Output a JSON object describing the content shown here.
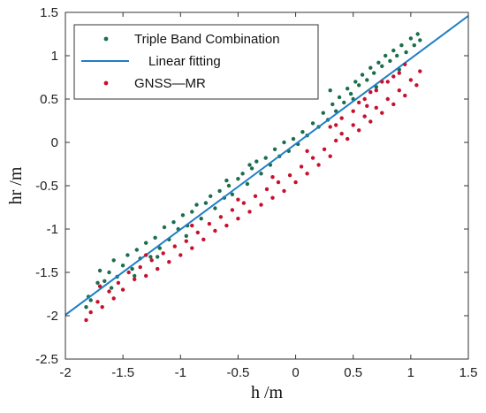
{
  "chart_data": {
    "type": "scatter",
    "xlabel": "h /m",
    "ylabel": "hr /m",
    "xlim": [
      -2,
      1.5
    ],
    "ylim": [
      -2.5,
      1.5
    ],
    "xticks": [
      "-2",
      "-1.5",
      "-1",
      "-0.5",
      "0",
      "0.5",
      "1",
      "1.5"
    ],
    "yticks": [
      "-2.5",
      "-2",
      "-1.5",
      "-1",
      "-0.5",
      "0",
      "0.5",
      "1",
      "1.5"
    ],
    "grid": false,
    "legend_position": "top-left",
    "series": [
      {
        "name": "Triple Band Combination",
        "kind": "scatter",
        "color": "#1a6e4a",
        "points": [
          [
            -1.82,
            -1.9
          ],
          [
            -1.8,
            -1.78
          ],
          [
            -1.78,
            -1.82
          ],
          [
            -1.72,
            -1.62
          ],
          [
            -1.7,
            -1.48
          ],
          [
            -1.66,
            -1.6
          ],
          [
            -1.62,
            -1.5
          ],
          [
            -1.58,
            -1.36
          ],
          [
            -1.55,
            -1.55
          ],
          [
            -1.5,
            -1.42
          ],
          [
            -1.46,
            -1.3
          ],
          [
            -1.42,
            -1.46
          ],
          [
            -1.38,
            -1.24
          ],
          [
            -1.35,
            -1.34
          ],
          [
            -1.3,
            -1.16
          ],
          [
            -1.26,
            -1.32
          ],
          [
            -1.22,
            -1.1
          ],
          [
            -1.18,
            -1.22
          ],
          [
            -1.14,
            -0.98
          ],
          [
            -1.1,
            -1.12
          ],
          [
            -1.06,
            -0.92
          ],
          [
            -1.02,
            -1.0
          ],
          [
            -0.98,
            -0.84
          ],
          [
            -0.94,
            -0.96
          ],
          [
            -0.9,
            -0.8
          ],
          [
            -0.86,
            -0.72
          ],
          [
            -0.82,
            -0.88
          ],
          [
            -0.78,
            -0.7
          ],
          [
            -0.74,
            -0.62
          ],
          [
            -0.7,
            -0.76
          ],
          [
            -0.66,
            -0.56
          ],
          [
            -0.62,
            -0.64
          ],
          [
            -0.58,
            -0.5
          ],
          [
            -0.55,
            -0.6
          ],
          [
            -0.5,
            -0.42
          ],
          [
            -0.46,
            -0.36
          ],
          [
            -0.42,
            -0.48
          ],
          [
            -0.38,
            -0.3
          ],
          [
            -0.34,
            -0.22
          ],
          [
            -0.3,
            -0.36
          ],
          [
            -0.26,
            -0.18
          ],
          [
            -0.22,
            -0.26
          ],
          [
            -0.18,
            -0.08
          ],
          [
            -0.14,
            -0.16
          ],
          [
            -0.1,
            0.0
          ],
          [
            -0.06,
            -0.1
          ],
          [
            -0.02,
            0.04
          ],
          [
            0.02,
            -0.02
          ],
          [
            0.06,
            0.12
          ],
          [
            0.1,
            0.08
          ],
          [
            0.15,
            0.22
          ],
          [
            0.2,
            0.18
          ],
          [
            0.24,
            0.34
          ],
          [
            0.28,
            0.26
          ],
          [
            0.32,
            0.44
          ],
          [
            0.35,
            0.36
          ],
          [
            0.38,
            0.52
          ],
          [
            0.42,
            0.46
          ],
          [
            0.45,
            0.62
          ],
          [
            0.48,
            0.56
          ],
          [
            0.52,
            0.7
          ],
          [
            0.55,
            0.66
          ],
          [
            0.58,
            0.78
          ],
          [
            0.62,
            0.72
          ],
          [
            0.65,
            0.86
          ],
          [
            0.68,
            0.8
          ],
          [
            0.72,
            0.92
          ],
          [
            0.75,
            0.88
          ],
          [
            0.78,
            1.0
          ],
          [
            0.82,
            0.94
          ],
          [
            0.85,
            1.06
          ],
          [
            0.88,
            1.0
          ],
          [
            0.92,
            1.12
          ],
          [
            0.96,
            1.04
          ],
          [
            1.0,
            1.2
          ],
          [
            1.03,
            1.12
          ],
          [
            1.06,
            1.25
          ],
          [
            1.08,
            1.18
          ],
          [
            -1.6,
            -1.68
          ],
          [
            -1.4,
            -1.54
          ],
          [
            -1.2,
            -1.32
          ],
          [
            -0.95,
            -1.08
          ],
          [
            -0.6,
            -0.44
          ],
          [
            -0.4,
            -0.26
          ],
          [
            0.3,
            0.6
          ],
          [
            0.5,
            0.5
          ],
          [
            0.7,
            0.64
          ],
          [
            0.9,
            0.84
          ]
        ]
      },
      {
        "name": "Linear fitting",
        "kind": "line",
        "color": "#1f7fc4",
        "x": [
          -2.0,
          1.5
        ],
        "y": [
          -1.99,
          1.46
        ]
      },
      {
        "name": "GNSS—MR",
        "kind": "scatter",
        "color": "#c8102e",
        "points": [
          [
            -1.82,
            -2.05
          ],
          [
            -1.78,
            -1.96
          ],
          [
            -1.72,
            -1.84
          ],
          [
            -1.68,
            -1.9
          ],
          [
            -1.62,
            -1.72
          ],
          [
            -1.58,
            -1.8
          ],
          [
            -1.54,
            -1.62
          ],
          [
            -1.5,
            -1.7
          ],
          [
            -1.45,
            -1.5
          ],
          [
            -1.4,
            -1.58
          ],
          [
            -1.35,
            -1.44
          ],
          [
            -1.3,
            -1.54
          ],
          [
            -1.25,
            -1.36
          ],
          [
            -1.2,
            -1.46
          ],
          [
            -1.15,
            -1.28
          ],
          [
            -1.1,
            -1.38
          ],
          [
            -1.05,
            -1.2
          ],
          [
            -1.0,
            -1.3
          ],
          [
            -0.95,
            -1.14
          ],
          [
            -0.9,
            -1.22
          ],
          [
            -0.85,
            -1.04
          ],
          [
            -0.8,
            -1.12
          ],
          [
            -0.75,
            -0.94
          ],
          [
            -0.7,
            -1.02
          ],
          [
            -0.65,
            -0.86
          ],
          [
            -0.6,
            -0.96
          ],
          [
            -0.55,
            -0.78
          ],
          [
            -0.5,
            -0.88
          ],
          [
            -0.45,
            -0.7
          ],
          [
            -0.4,
            -0.8
          ],
          [
            -0.35,
            -0.62
          ],
          [
            -0.3,
            -0.72
          ],
          [
            -0.25,
            -0.54
          ],
          [
            -0.2,
            -0.64
          ],
          [
            -0.15,
            -0.46
          ],
          [
            -0.1,
            -0.56
          ],
          [
            -0.05,
            -0.38
          ],
          [
            0.0,
            -0.46
          ],
          [
            0.05,
            -0.28
          ],
          [
            0.1,
            -0.36
          ],
          [
            0.15,
            -0.18
          ],
          [
            0.2,
            -0.26
          ],
          [
            0.25,
            -0.08
          ],
          [
            0.3,
            -0.16
          ],
          [
            0.35,
            0.02
          ],
          [
            0.4,
            0.1
          ],
          [
            0.45,
            0.04
          ],
          [
            0.5,
            0.2
          ],
          [
            0.55,
            0.14
          ],
          [
            0.6,
            0.3
          ],
          [
            0.65,
            0.24
          ],
          [
            0.7,
            0.4
          ],
          [
            0.75,
            0.34
          ],
          [
            0.8,
            0.5
          ],
          [
            0.85,
            0.44
          ],
          [
            0.9,
            0.6
          ],
          [
            0.95,
            0.54
          ],
          [
            1.0,
            0.72
          ],
          [
            1.05,
            0.66
          ],
          [
            1.08,
            0.82
          ],
          [
            0.6,
            0.5
          ],
          [
            0.7,
            0.6
          ],
          [
            0.8,
            0.7
          ],
          [
            0.9,
            0.8
          ],
          [
            0.5,
            0.36
          ],
          [
            0.4,
            0.28
          ],
          [
            0.3,
            0.18
          ],
          [
            0.85,
            0.76
          ],
          [
            0.95,
            0.9
          ],
          [
            0.75,
            0.7
          ],
          [
            0.65,
            0.58
          ],
          [
            0.55,
            0.46
          ],
          [
            -1.7,
            -1.66
          ],
          [
            -1.3,
            -1.3
          ],
          [
            -0.9,
            -0.96
          ],
          [
            -0.5,
            -0.66
          ],
          [
            -0.2,
            -0.4
          ],
          [
            0.1,
            -0.1
          ],
          [
            0.35,
            0.2
          ],
          [
            0.62,
            0.42
          ]
        ]
      }
    ]
  }
}
